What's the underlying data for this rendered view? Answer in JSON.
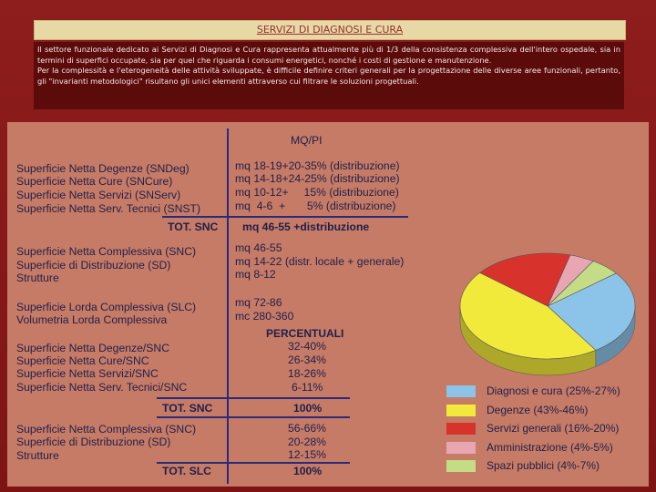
{
  "title": "SERVIZI DI DIAGNOSI E CURA",
  "intro": {
    "p1": "Il settore funzionale dedicato ai Servizi di Diagnosi e Cura rappresenta attualmente più di 1/3 della consistenza complessiva dell'intero ospedale, sia in termini di superfici occupate, sia per quel che riguarda i consumi energetici, nonché i costi di gestione e manutenzione.",
    "p2": "Per la complessità e l'eterogeneità delle attività sviluppate, è difficile definire criteri generali per la progettazione delle diverse aree funzionali, pertanto, gli \"invarianti metodologici\" risultano gli unici elementi attraverso cui filtrare le soluzioni progettuali."
  },
  "header_mq": "MQ/PI",
  "block1": {
    "labels": [
      "Superficie Netta Degenze (SNDeg)",
      "Superficie Netta Cure (SNCure)",
      "Superficie Netta Servizi (SNServ)",
      "Superficie Netta Serv. Tecnici (SNST)"
    ],
    "values": [
      "mq 18-19+20-35% (distribuzione)",
      "mq 14-18+24-25% (distribuzione)",
      "mq 10-12+     15% (distribuzione)",
      "mq  4-6  +       5% (distribuzione)"
    ],
    "total_label": "TOT. SNC",
    "total_value": "mq 46-55 +distribuzione"
  },
  "block2": {
    "labels": [
      "Superficie Netta Complessiva (SNC)",
      "Superficie di Distribuzione (SD)",
      "Strutture"
    ],
    "values": [
      "mq 46-55",
      "mq 14-22 (distr. locale + generale)",
      "mq 8-12"
    ]
  },
  "block3": {
    "labels": [
      "Superficie Lorda Complessiva (SLC)",
      "Volumetria Lorda Complessiva"
    ],
    "values": [
      "mq 72-86",
      "mc 280-360"
    ]
  },
  "header_pct": "PERCENTUALI",
  "block4": {
    "labels": [
      "Superficie Netta Degenze/SNC",
      "Superficie Netta Cure/SNC",
      "Superficie Netta Servizi/SNC",
      "Superficie Netta Serv. Tecnici/SNC"
    ],
    "values": [
      "32-40%",
      "26-34%",
      "18-26%",
      "6-11%"
    ],
    "total_label": "TOT. SNC",
    "total_value": "100%"
  },
  "block5": {
    "labels": [
      "Superficie Netta Complessiva (SNC)",
      "Superficie di Distribuzione (SD)",
      "Strutture"
    ],
    "values": [
      "56-66%",
      "20-28%",
      "12-15%"
    ],
    "total_label": "TOT. SLC",
    "total_value": "100%"
  },
  "legend": [
    {
      "label": "Diagnosi e cura (25%-27%)",
      "color": "#8cc3e8"
    },
    {
      "label": "Degenze (43%-46%)",
      "color": "#f2ea3a"
    },
    {
      "label": "Servizi generali (16%-20%)",
      "color": "#d8322c"
    },
    {
      "label": "Amministrazione (4%-5%)",
      "color": "#e8a6b3"
    },
    {
      "label": "Spazi pubblici (4%-7%)",
      "color": "#c3dc85"
    }
  ],
  "chart_data": {
    "type": "pie",
    "categories": [
      "Diagnosi e cura",
      "Degenze",
      "Servizi generali",
      "Amministrazione",
      "Spazi pubblici"
    ],
    "values": [
      26,
      44.5,
      18,
      4.5,
      5.5
    ],
    "value_ranges": [
      "25%-27%",
      "43%-46%",
      "16%-20%",
      "4%-5%",
      "4%-7%"
    ],
    "colors": [
      "#8cc3e8",
      "#f2ea3a",
      "#d8322c",
      "#e8a6b3",
      "#c3dc85"
    ],
    "legend_position": "bottom-right",
    "style": "3d"
  }
}
